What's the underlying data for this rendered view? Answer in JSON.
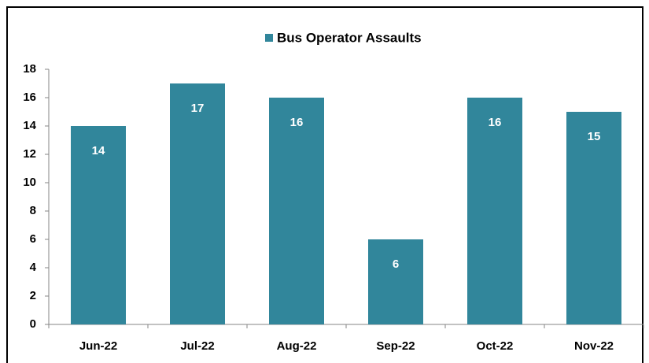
{
  "chart_data": {
    "type": "bar",
    "categories": [
      "Jun-22",
      "Jul-22",
      "Aug-22",
      "Sep-22",
      "Oct-22",
      "Nov-22"
    ],
    "series": [
      {
        "name": "Bus Operator Assaults",
        "color": "#31869b",
        "values": [
          14,
          17,
          16,
          6,
          16,
          15
        ]
      }
    ],
    "ylim": [
      0,
      18
    ],
    "yticks": [
      0,
      2,
      4,
      6,
      8,
      10,
      12,
      14,
      16,
      18
    ],
    "grid": false,
    "legend": "top",
    "data_labels": true
  }
}
